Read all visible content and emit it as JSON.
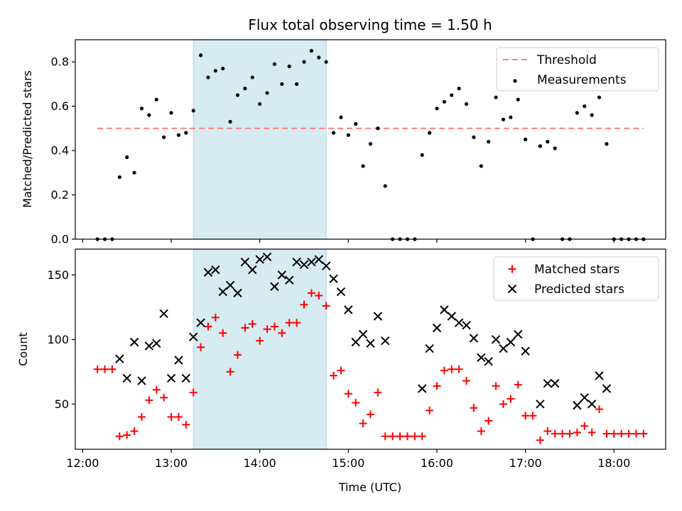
{
  "chart_data": {
    "type": "scatter",
    "title": "Flux total observing time = 1.50 h",
    "xlabel": "Time (UTC)",
    "x_ticks": [
      "12:00",
      "13:00",
      "14:00",
      "15:00",
      "16:00",
      "17:00",
      "18:00"
    ],
    "highlight_span": {
      "start": "13:15",
      "end": "14:45",
      "color": "#add8e6"
    },
    "panels": [
      {
        "name": "ratio",
        "ylabel": "Matched/Predicted stars",
        "ylim": [
          0,
          0.9
        ],
        "y_ticks": [
          "0.0",
          "0.2",
          "0.4",
          "0.6",
          "0.8"
        ],
        "legend_position": "top-right",
        "threshold": {
          "name": "Threshold",
          "value": 0.5,
          "x_start": "12:10",
          "x_end": "18:20",
          "color": "#ff8080"
        },
        "series": [
          {
            "name": "Measurements",
            "marker": "dot",
            "color": "#000000",
            "points": [
              [
                "12:10",
                0.0
              ],
              [
                "12:15",
                0.0
              ],
              [
                "12:20",
                0.0
              ],
              [
                "12:25",
                0.28
              ],
              [
                "12:30",
                0.37
              ],
              [
                "12:35",
                0.3
              ],
              [
                "12:40",
                0.59
              ],
              [
                "12:45",
                0.56
              ],
              [
                "12:50",
                0.63
              ],
              [
                "12:55",
                0.46
              ],
              [
                "13:00",
                0.57
              ],
              [
                "13:05",
                0.47
              ],
              [
                "13:10",
                0.48
              ],
              [
                "13:15",
                0.58
              ],
              [
                "13:20",
                0.83
              ],
              [
                "13:25",
                0.73
              ],
              [
                "13:30",
                0.76
              ],
              [
                "13:35",
                0.77
              ],
              [
                "13:40",
                0.53
              ],
              [
                "13:45",
                0.65
              ],
              [
                "13:50",
                0.68
              ],
              [
                "13:55",
                0.73
              ],
              [
                "14:00",
                0.61
              ],
              [
                "14:05",
                0.66
              ],
              [
                "14:10",
                0.79
              ],
              [
                "14:15",
                0.7
              ],
              [
                "14:20",
                0.78
              ],
              [
                "14:25",
                0.7
              ],
              [
                "14:30",
                0.8
              ],
              [
                "14:35",
                0.85
              ],
              [
                "14:40",
                0.82
              ],
              [
                "14:45",
                0.8
              ],
              [
                "14:50",
                0.48
              ],
              [
                "14:55",
                0.55
              ],
              [
                "15:00",
                0.47
              ],
              [
                "15:05",
                0.52
              ],
              [
                "15:10",
                0.33
              ],
              [
                "15:15",
                0.43
              ],
              [
                "15:20",
                0.5
              ],
              [
                "15:25",
                0.24
              ],
              [
                "15:30",
                0.0
              ],
              [
                "15:35",
                0.0
              ],
              [
                "15:40",
                0.0
              ],
              [
                "15:45",
                0.0
              ],
              [
                "15:50",
                0.38
              ],
              [
                "15:55",
                0.48
              ],
              [
                "16:00",
                0.59
              ],
              [
                "16:05",
                0.62
              ],
              [
                "16:10",
                0.65
              ],
              [
                "16:15",
                0.68
              ],
              [
                "16:20",
                0.61
              ],
              [
                "16:25",
                0.46
              ],
              [
                "16:30",
                0.33
              ],
              [
                "16:35",
                0.44
              ],
              [
                "16:40",
                0.64
              ],
              [
                "16:45",
                0.54
              ],
              [
                "16:50",
                0.55
              ],
              [
                "16:55",
                0.63
              ],
              [
                "17:00",
                0.45
              ],
              [
                "17:05",
                0.0
              ],
              [
                "17:10",
                0.42
              ],
              [
                "17:15",
                0.44
              ],
              [
                "17:20",
                0.41
              ],
              [
                "17:25",
                0.0
              ],
              [
                "17:30",
                0.0
              ],
              [
                "17:35",
                0.57
              ],
              [
                "17:40",
                0.6
              ],
              [
                "17:45",
                0.56
              ],
              [
                "17:50",
                0.64
              ],
              [
                "17:55",
                0.43
              ],
              [
                "18:00",
                0.0
              ],
              [
                "18:05",
                0.0
              ],
              [
                "18:10",
                0.0
              ],
              [
                "18:15",
                0.0
              ],
              [
                "18:20",
                0.0
              ]
            ]
          }
        ]
      },
      {
        "name": "counts",
        "ylabel": "Count",
        "ylim": [
          15,
          170
        ],
        "y_ticks": [
          "50",
          "100",
          "150"
        ],
        "legend_position": "top-right",
        "series": [
          {
            "name": "Matched stars",
            "marker": "plus",
            "color": "#ff0000",
            "points": [
              [
                "12:10",
                77
              ],
              [
                "12:15",
                77
              ],
              [
                "12:20",
                77
              ],
              [
                "12:25",
                25
              ],
              [
                "12:30",
                26
              ],
              [
                "12:35",
                29
              ],
              [
                "12:40",
                40
              ],
              [
                "12:45",
                53
              ],
              [
                "12:50",
                61
              ],
              [
                "12:55",
                55
              ],
              [
                "13:00",
                40
              ],
              [
                "13:05",
                40
              ],
              [
                "13:10",
                34
              ],
              [
                "13:15",
                59
              ],
              [
                "13:20",
                94
              ],
              [
                "13:25",
                110
              ],
              [
                "13:30",
                117
              ],
              [
                "13:35",
                105
              ],
              [
                "13:40",
                75
              ],
              [
                "13:45",
                88
              ],
              [
                "13:50",
                109
              ],
              [
                "13:55",
                112
              ],
              [
                "14:00",
                99
              ],
              [
                "14:05",
                108
              ],
              [
                "14:10",
                110
              ],
              [
                "14:15",
                105
              ],
              [
                "14:20",
                113
              ],
              [
                "14:25",
                113
              ],
              [
                "14:30",
                127
              ],
              [
                "14:35",
                136
              ],
              [
                "14:40",
                134
              ],
              [
                "14:45",
                126
              ],
              [
                "14:50",
                72
              ],
              [
                "14:55",
                76
              ],
              [
                "15:00",
                58
              ],
              [
                "15:05",
                51
              ],
              [
                "15:10",
                35
              ],
              [
                "15:15",
                42
              ],
              [
                "15:20",
                59
              ],
              [
                "15:25",
                25
              ],
              [
                "15:30",
                25
              ],
              [
                "15:35",
                25
              ],
              [
                "15:40",
                25
              ],
              [
                "15:45",
                25
              ],
              [
                "15:50",
                25
              ],
              [
                "15:55",
                45
              ],
              [
                "16:00",
                64
              ],
              [
                "16:05",
                76
              ],
              [
                "16:10",
                77
              ],
              [
                "16:15",
                77
              ],
              [
                "16:20",
                68
              ],
              [
                "16:25",
                47
              ],
              [
                "16:30",
                29
              ],
              [
                "16:35",
                37
              ],
              [
                "16:40",
                64
              ],
              [
                "16:45",
                50
              ],
              [
                "16:50",
                54
              ],
              [
                "16:55",
                65
              ],
              [
                "17:00",
                41
              ],
              [
                "17:05",
                41
              ],
              [
                "17:10",
                22
              ],
              [
                "17:15",
                29
              ],
              [
                "17:20",
                27
              ],
              [
                "17:25",
                27
              ],
              [
                "17:30",
                27
              ],
              [
                "17:35",
                28
              ],
              [
                "17:40",
                33
              ],
              [
                "17:45",
                28
              ],
              [
                "17:50",
                46
              ],
              [
                "17:55",
                27
              ],
              [
                "18:00",
                27
              ],
              [
                "18:05",
                27
              ],
              [
                "18:10",
                27
              ],
              [
                "18:15",
                27
              ],
              [
                "18:20",
                27
              ]
            ]
          },
          {
            "name": "Predicted stars",
            "marker": "x",
            "color": "#000000",
            "points": [
              [
                "12:25",
                85
              ],
              [
                "12:30",
                70
              ],
              [
                "12:35",
                98
              ],
              [
                "12:40",
                68
              ],
              [
                "12:45",
                95
              ],
              [
                "12:50",
                97
              ],
              [
                "12:55",
                120
              ],
              [
                "13:00",
                70
              ],
              [
                "13:05",
                84
              ],
              [
                "13:10",
                70
              ],
              [
                "13:15",
                102
              ],
              [
                "13:20",
                113
              ],
              [
                "13:25",
                152
              ],
              [
                "13:30",
                154
              ],
              [
                "13:35",
                137
              ],
              [
                "13:40",
                142
              ],
              [
                "13:45",
                136
              ],
              [
                "13:50",
                160
              ],
              [
                "13:55",
                154
              ],
              [
                "14:00",
                162
              ],
              [
                "14:05",
                164
              ],
              [
                "14:10",
                141
              ],
              [
                "14:15",
                150
              ],
              [
                "14:20",
                146
              ],
              [
                "14:25",
                160
              ],
              [
                "14:30",
                158
              ],
              [
                "14:35",
                160
              ],
              [
                "14:40",
                162
              ],
              [
                "14:45",
                157
              ],
              [
                "14:50",
                147
              ],
              [
                "14:55",
                137
              ],
              [
                "15:00",
                123
              ],
              [
                "15:05",
                98
              ],
              [
                "15:10",
                104
              ],
              [
                "15:15",
                97
              ],
              [
                "15:20",
                118
              ],
              [
                "15:25",
                99
              ],
              [
                "15:50",
                62
              ],
              [
                "15:55",
                93
              ],
              [
                "16:00",
                109
              ],
              [
                "16:05",
                123
              ],
              [
                "16:10",
                118
              ],
              [
                "16:15",
                113
              ],
              [
                "16:20",
                111
              ],
              [
                "16:25",
                101
              ],
              [
                "16:30",
                86
              ],
              [
                "16:35",
                83
              ],
              [
                "16:40",
                100
              ],
              [
                "16:45",
                93
              ],
              [
                "16:50",
                98
              ],
              [
                "16:55",
                104
              ],
              [
                "17:00",
                91
              ],
              [
                "17:10",
                50
              ],
              [
                "17:15",
                66
              ],
              [
                "17:20",
                66
              ],
              [
                "17:35",
                49
              ],
              [
                "17:40",
                55
              ],
              [
                "17:45",
                50
              ],
              [
                "17:50",
                72
              ],
              [
                "17:55",
                62
              ]
            ]
          }
        ]
      }
    ]
  }
}
